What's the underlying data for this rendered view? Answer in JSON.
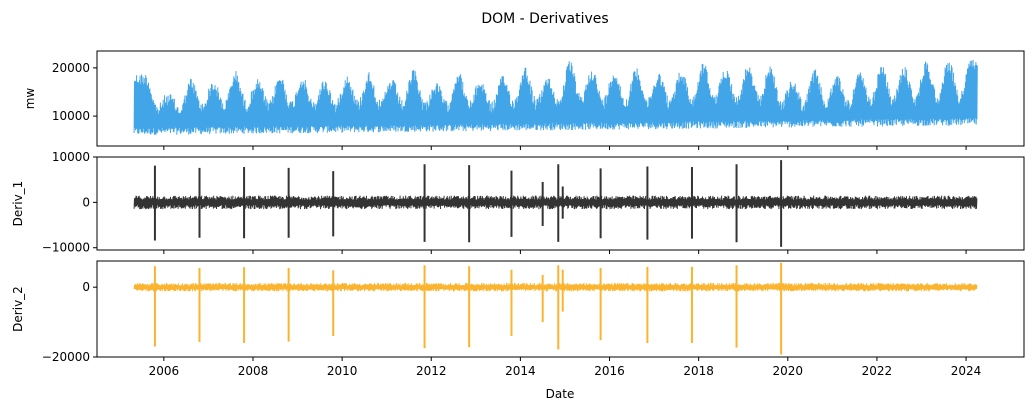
{
  "chart_data": {
    "type": "line",
    "title": "DOM - Derivatives",
    "xlabel": "Date",
    "x_range": [
      2004.5,
      2025.3
    ],
    "x_ticks": [
      {
        "value": 2006,
        "label": "2006"
      },
      {
        "value": 2008,
        "label": "2008"
      },
      {
        "value": 2010,
        "label": "2010"
      },
      {
        "value": 2012,
        "label": "2012"
      },
      {
        "value": 2014,
        "label": "2014"
      },
      {
        "value": 2016,
        "label": "2016"
      },
      {
        "value": 2018,
        "label": "2018"
      },
      {
        "value": 2020,
        "label": "2020"
      },
      {
        "value": 2022,
        "label": "2022"
      },
      {
        "value": 2024,
        "label": "2024"
      }
    ],
    "data_span": [
      "2005-05-01",
      "2024-04-01"
    ],
    "grid": false,
    "subplots": [
      {
        "ylabel": "mw",
        "color": "#42a5e8",
        "ylim": [
          3800,
          23500
        ],
        "y_ticks": [
          {
            "value": 10000,
            "label": "10000"
          },
          {
            "value": 20000,
            "label": "20000"
          }
        ],
        "summary": {
          "baseline_low": 6000,
          "typical_high": 17000,
          "peak": 22000
        },
        "seasonal_peaks": [
          {
            "year": 2005.6,
            "value": 18900
          },
          {
            "year": 2006.1,
            "value": 14600
          },
          {
            "year": 2006.6,
            "value": 18000
          },
          {
            "year": 2007.1,
            "value": 17300
          },
          {
            "year": 2007.6,
            "value": 19500
          },
          {
            "year": 2008.1,
            "value": 17700
          },
          {
            "year": 2008.6,
            "value": 18700
          },
          {
            "year": 2009.1,
            "value": 18400
          },
          {
            "year": 2009.6,
            "value": 17700
          },
          {
            "year": 2010.1,
            "value": 18700
          },
          {
            "year": 2010.6,
            "value": 19300
          },
          {
            "year": 2011.1,
            "value": 17700
          },
          {
            "year": 2011.6,
            "value": 19900
          },
          {
            "year": 2012.1,
            "value": 16900
          },
          {
            "year": 2012.6,
            "value": 19600
          },
          {
            "year": 2013.1,
            "value": 17600
          },
          {
            "year": 2013.6,
            "value": 18400
          },
          {
            "year": 2014.1,
            "value": 20500
          },
          {
            "year": 2014.6,
            "value": 18000
          },
          {
            "year": 2015.1,
            "value": 21600
          },
          {
            "year": 2015.6,
            "value": 19900
          },
          {
            "year": 2016.1,
            "value": 19700
          },
          {
            "year": 2016.6,
            "value": 20200
          },
          {
            "year": 2017.1,
            "value": 19200
          },
          {
            "year": 2017.6,
            "value": 19600
          },
          {
            "year": 2018.1,
            "value": 21300
          },
          {
            "year": 2018.6,
            "value": 20300
          },
          {
            "year": 2019.1,
            "value": 20600
          },
          {
            "year": 2019.6,
            "value": 20800
          },
          {
            "year": 2020.1,
            "value": 17300
          },
          {
            "year": 2020.6,
            "value": 19800
          },
          {
            "year": 2021.1,
            "value": 18600
          },
          {
            "year": 2021.6,
            "value": 19200
          },
          {
            "year": 2022.1,
            "value": 20700
          },
          {
            "year": 2022.6,
            "value": 20300
          },
          {
            "year": 2023.1,
            "value": 21600
          },
          {
            "year": 2023.6,
            "value": 21900
          },
          {
            "year": 2024.1,
            "value": 21800
          }
        ]
      },
      {
        "ylabel": "Deriv_1",
        "color": "#333333",
        "ylim": [
          -10500,
          10000
        ],
        "y_ticks": [
          {
            "value": -10000,
            "label": "−10000"
          },
          {
            "value": 0,
            "label": "0"
          },
          {
            "value": 10000,
            "label": "10000"
          }
        ],
        "noise_band": [
          -1500,
          1500
        ],
        "spikes": [
          {
            "year": 2005.8,
            "high": 8100,
            "low": -8400
          },
          {
            "year": 2006.8,
            "high": 7600,
            "low": -7800
          },
          {
            "year": 2007.8,
            "high": 7800,
            "low": -7900
          },
          {
            "year": 2008.8,
            "high": 7600,
            "low": -7800
          },
          {
            "year": 2009.8,
            "high": 6900,
            "low": -7500
          },
          {
            "year": 2011.85,
            "high": 8400,
            "low": -8700
          },
          {
            "year": 2012.85,
            "high": 8200,
            "low": -8800
          },
          {
            "year": 2013.8,
            "high": 7000,
            "low": -7600
          },
          {
            "year": 2014.5,
            "high": 4500,
            "low": -5200
          },
          {
            "year": 2014.85,
            "high": 8400,
            "low": -8700
          },
          {
            "year": 2014.95,
            "high": 3500,
            "low": -3600
          },
          {
            "year": 2015.8,
            "high": 7500,
            "low": -7900
          },
          {
            "year": 2016.85,
            "high": 7900,
            "low": -8200
          },
          {
            "year": 2017.85,
            "high": 7800,
            "low": -8000
          },
          {
            "year": 2018.85,
            "high": 8400,
            "low": -8800
          },
          {
            "year": 2019.85,
            "high": 9300,
            "low": -9800
          }
        ]
      },
      {
        "ylabel": "Deriv_2",
        "color": "#fbb42f",
        "ylim": [
          -20000,
          7500
        ],
        "y_ticks": [
          {
            "value": -20000,
            "label": "−20000"
          },
          {
            "value": 0,
            "label": "0"
          }
        ],
        "noise_band": [
          -1200,
          1200
        ],
        "spikes": [
          {
            "year": 2005.8,
            "high": 6000,
            "low": -17000
          },
          {
            "year": 2006.8,
            "high": 5500,
            "low": -15700
          },
          {
            "year": 2007.8,
            "high": 5700,
            "low": -16000
          },
          {
            "year": 2008.8,
            "high": 5500,
            "low": -15600
          },
          {
            "year": 2009.8,
            "high": 4800,
            "low": -14000
          },
          {
            "year": 2011.85,
            "high": 6300,
            "low": -17500
          },
          {
            "year": 2012.85,
            "high": 6000,
            "low": -17200
          },
          {
            "year": 2013.8,
            "high": 5000,
            "low": -14000
          },
          {
            "year": 2014.5,
            "high": 3500,
            "low": -10000
          },
          {
            "year": 2014.85,
            "high": 6300,
            "low": -17800
          },
          {
            "year": 2014.95,
            "high": 5000,
            "low": -7000
          },
          {
            "year": 2015.8,
            "high": 5500,
            "low": -15200
          },
          {
            "year": 2016.85,
            "high": 5800,
            "low": -16000
          },
          {
            "year": 2017.85,
            "high": 5800,
            "low": -16000
          },
          {
            "year": 2018.85,
            "high": 6300,
            "low": -17300
          },
          {
            "year": 2019.85,
            "high": 7000,
            "low": -19300
          }
        ]
      }
    ]
  }
}
